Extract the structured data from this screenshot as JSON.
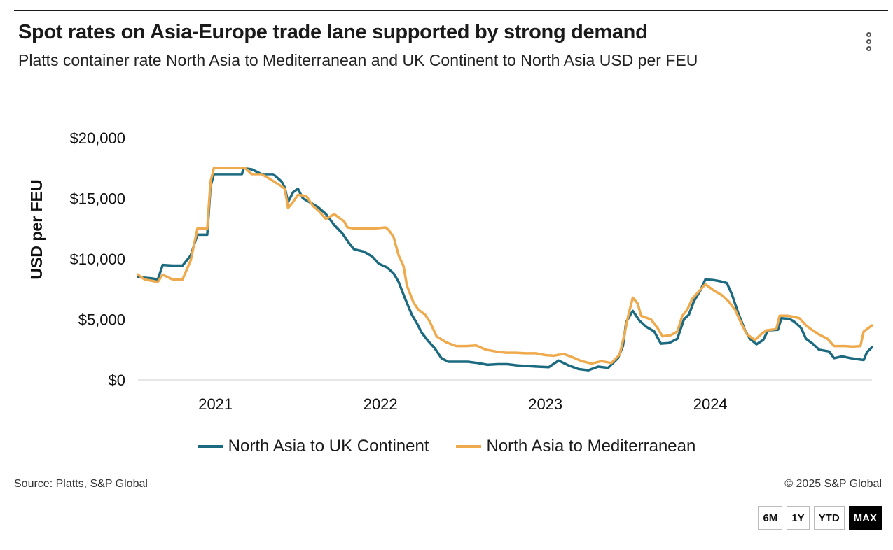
{
  "header": {
    "title": "Spot rates on Asia-Europe trade lane supported by strong demand",
    "subtitle": "Platts container rate North Asia to Mediterranean and UK Continent to North Asia USD per FEU"
  },
  "footer": {
    "source": "Source: Platts, S&P Global",
    "copyright": "© 2025 S&P Global"
  },
  "range_buttons": [
    {
      "label": "6M",
      "active": false
    },
    {
      "label": "1Y",
      "active": false
    },
    {
      "label": "YTD",
      "active": false
    },
    {
      "label": "MAX",
      "active": true
    }
  ],
  "colors": {
    "uk": "#1b6a80",
    "med": "#eeaa4c",
    "grid": "#cccccc"
  },
  "chart_data": {
    "type": "line",
    "title": "Spot rates on Asia-Europe trade lane supported by strong demand",
    "ylabel": "USD per FEU",
    "xlabel": "",
    "xlim": [
      2020.53,
      2024.98
    ],
    "ylim": [
      0,
      20000
    ],
    "yticks": [
      0,
      5000,
      10000,
      15000,
      20000
    ],
    "ytick_labels": [
      "$0",
      "$5,000",
      "$10,000",
      "$15,000",
      "$20,000"
    ],
    "xticks": [
      2021.0,
      2022.0,
      2023.0,
      2024.0
    ],
    "xtick_labels": [
      "2021",
      "2022",
      "2023",
      "2024"
    ],
    "legend_position": "bottom",
    "series": [
      {
        "name": "North Asia to UK Continent",
        "color": "#1b6a80",
        "points": [
          [
            2020.53,
            8500
          ],
          [
            2020.61,
            8400
          ],
          [
            2020.65,
            8300
          ],
          [
            2020.68,
            9500
          ],
          [
            2020.74,
            9450
          ],
          [
            2020.8,
            9450
          ],
          [
            2020.85,
            10300
          ],
          [
            2020.89,
            12000
          ],
          [
            2020.95,
            12000
          ],
          [
            2020.97,
            16000
          ],
          [
            2020.99,
            17000
          ],
          [
            2021.05,
            17000
          ],
          [
            2021.12,
            17000
          ],
          [
            2021.16,
            17000
          ],
          [
            2021.17,
            17500
          ],
          [
            2021.22,
            17400
          ],
          [
            2021.28,
            17000
          ],
          [
            2021.35,
            17000
          ],
          [
            2021.4,
            16400
          ],
          [
            2021.42,
            15900
          ],
          [
            2021.44,
            14700
          ],
          [
            2021.47,
            15500
          ],
          [
            2021.5,
            15800
          ],
          [
            2021.53,
            15000
          ],
          [
            2021.57,
            14700
          ],
          [
            2021.62,
            14300
          ],
          [
            2021.67,
            13700
          ],
          [
            2021.72,
            12800
          ],
          [
            2021.77,
            12100
          ],
          [
            2021.81,
            11300
          ],
          [
            2021.84,
            10800
          ],
          [
            2021.9,
            10600
          ],
          [
            2021.95,
            10200
          ],
          [
            2021.99,
            9600
          ],
          [
            2022.04,
            9300
          ],
          [
            2022.08,
            8800
          ],
          [
            2022.11,
            8100
          ],
          [
            2022.15,
            6700
          ],
          [
            2022.19,
            5400
          ],
          [
            2022.22,
            4700
          ],
          [
            2022.25,
            3900
          ],
          [
            2022.29,
            3200
          ],
          [
            2022.33,
            2600
          ],
          [
            2022.37,
            1800
          ],
          [
            2022.41,
            1500
          ],
          [
            2022.47,
            1500
          ],
          [
            2022.53,
            1500
          ],
          [
            2022.59,
            1400
          ],
          [
            2022.65,
            1250
          ],
          [
            2022.71,
            1300
          ],
          [
            2022.77,
            1300
          ],
          [
            2022.83,
            1200
          ],
          [
            2022.89,
            1150
          ],
          [
            2022.95,
            1100
          ],
          [
            2023.02,
            1050
          ],
          [
            2023.08,
            1600
          ],
          [
            2023.14,
            1200
          ],
          [
            2023.2,
            900
          ],
          [
            2023.26,
            800
          ],
          [
            2023.32,
            1100
          ],
          [
            2023.38,
            1000
          ],
          [
            2023.44,
            1800
          ],
          [
            2023.47,
            2800
          ],
          [
            2023.49,
            4800
          ],
          [
            2023.53,
            5700
          ],
          [
            2023.57,
            4900
          ],
          [
            2023.61,
            4400
          ],
          [
            2023.66,
            4000
          ],
          [
            2023.7,
            3000
          ],
          [
            2023.75,
            3050
          ],
          [
            2023.8,
            3400
          ],
          [
            2023.84,
            5000
          ],
          [
            2023.87,
            5400
          ],
          [
            2023.9,
            6500
          ],
          [
            2023.94,
            7400
          ],
          [
            2023.97,
            8300
          ],
          [
            2024.02,
            8250
          ],
          [
            2024.06,
            8150
          ],
          [
            2024.1,
            8000
          ],
          [
            2024.13,
            7100
          ],
          [
            2024.17,
            5500
          ],
          [
            2024.21,
            4100
          ],
          [
            2024.24,
            3400
          ],
          [
            2024.28,
            2950
          ],
          [
            2024.32,
            3300
          ],
          [
            2024.35,
            4100
          ],
          [
            2024.41,
            4150
          ],
          [
            2024.43,
            5100
          ],
          [
            2024.48,
            5050
          ],
          [
            2024.51,
            4800
          ],
          [
            2024.55,
            4300
          ],
          [
            2024.58,
            3400
          ],
          [
            2024.62,
            3000
          ],
          [
            2024.66,
            2500
          ],
          [
            2024.72,
            2350
          ],
          [
            2024.75,
            1800
          ],
          [
            2024.8,
            1950
          ],
          [
            2024.85,
            1800
          ],
          [
            2024.9,
            1700
          ],
          [
            2024.93,
            1650
          ],
          [
            2024.95,
            2300
          ],
          [
            2024.98,
            2700
          ]
        ]
      },
      {
        "name": "North Asia to Mediterranean",
        "color": "#eeaa4c",
        "points": [
          [
            2020.53,
            8700
          ],
          [
            2020.57,
            8300
          ],
          [
            2020.61,
            8200
          ],
          [
            2020.65,
            8100
          ],
          [
            2020.68,
            8700
          ],
          [
            2020.74,
            8300
          ],
          [
            2020.8,
            8300
          ],
          [
            2020.85,
            9900
          ],
          [
            2020.89,
            12500
          ],
          [
            2020.95,
            12500
          ],
          [
            2020.97,
            16400
          ],
          [
            2020.99,
            17500
          ],
          [
            2021.05,
            17500
          ],
          [
            2021.12,
            17500
          ],
          [
            2021.18,
            17500
          ],
          [
            2021.22,
            17000
          ],
          [
            2021.28,
            17000
          ],
          [
            2021.33,
            16600
          ],
          [
            2021.4,
            16000
          ],
          [
            2021.42,
            15800
          ],
          [
            2021.44,
            14200
          ],
          [
            2021.47,
            14700
          ],
          [
            2021.5,
            15300
          ],
          [
            2021.55,
            15200
          ],
          [
            2021.59,
            14400
          ],
          [
            2021.63,
            13900
          ],
          [
            2021.67,
            13300
          ],
          [
            2021.72,
            13700
          ],
          [
            2021.78,
            13100
          ],
          [
            2021.8,
            12600
          ],
          [
            2021.85,
            12500
          ],
          [
            2021.95,
            12500
          ],
          [
            2022.03,
            12600
          ],
          [
            2022.05,
            12400
          ],
          [
            2022.08,
            11800
          ],
          [
            2022.11,
            10300
          ],
          [
            2022.14,
            9400
          ],
          [
            2022.16,
            7800
          ],
          [
            2022.2,
            6400
          ],
          [
            2022.23,
            5800
          ],
          [
            2022.27,
            5400
          ],
          [
            2022.3,
            4800
          ],
          [
            2022.34,
            3600
          ],
          [
            2022.4,
            3100
          ],
          [
            2022.46,
            2800
          ],
          [
            2022.52,
            2800
          ],
          [
            2022.58,
            2850
          ],
          [
            2022.64,
            2500
          ],
          [
            2022.7,
            2350
          ],
          [
            2022.76,
            2250
          ],
          [
            2022.82,
            2250
          ],
          [
            2022.88,
            2200
          ],
          [
            2022.94,
            2200
          ],
          [
            2023.0,
            2050
          ],
          [
            2023.05,
            2000
          ],
          [
            2023.11,
            2150
          ],
          [
            2023.16,
            1900
          ],
          [
            2023.22,
            1550
          ],
          [
            2023.28,
            1350
          ],
          [
            2023.34,
            1550
          ],
          [
            2023.4,
            1400
          ],
          [
            2023.45,
            2100
          ],
          [
            2023.48,
            3800
          ],
          [
            2023.5,
            5200
          ],
          [
            2023.53,
            6800
          ],
          [
            2023.56,
            6300
          ],
          [
            2023.58,
            5300
          ],
          [
            2023.64,
            5000
          ],
          [
            2023.68,
            4300
          ],
          [
            2023.71,
            3600
          ],
          [
            2023.76,
            3700
          ],
          [
            2023.8,
            4000
          ],
          [
            2023.83,
            5300
          ],
          [
            2023.86,
            5800
          ],
          [
            2023.89,
            6700
          ],
          [
            2023.93,
            7300
          ],
          [
            2023.97,
            7900
          ],
          [
            2024.02,
            7400
          ],
          [
            2024.07,
            7000
          ],
          [
            2024.11,
            6500
          ],
          [
            2024.15,
            5800
          ],
          [
            2024.19,
            4600
          ],
          [
            2024.22,
            3800
          ],
          [
            2024.27,
            3300
          ],
          [
            2024.31,
            3800
          ],
          [
            2024.34,
            4100
          ],
          [
            2024.4,
            4200
          ],
          [
            2024.42,
            5300
          ],
          [
            2024.47,
            5300
          ],
          [
            2024.51,
            5200
          ],
          [
            2024.54,
            5100
          ],
          [
            2024.58,
            4500
          ],
          [
            2024.62,
            4100
          ],
          [
            2024.66,
            3750
          ],
          [
            2024.71,
            3400
          ],
          [
            2024.75,
            2800
          ],
          [
            2024.82,
            2800
          ],
          [
            2024.86,
            2750
          ],
          [
            2024.91,
            2800
          ],
          [
            2024.93,
            4000
          ],
          [
            2024.98,
            4500
          ]
        ]
      }
    ]
  }
}
